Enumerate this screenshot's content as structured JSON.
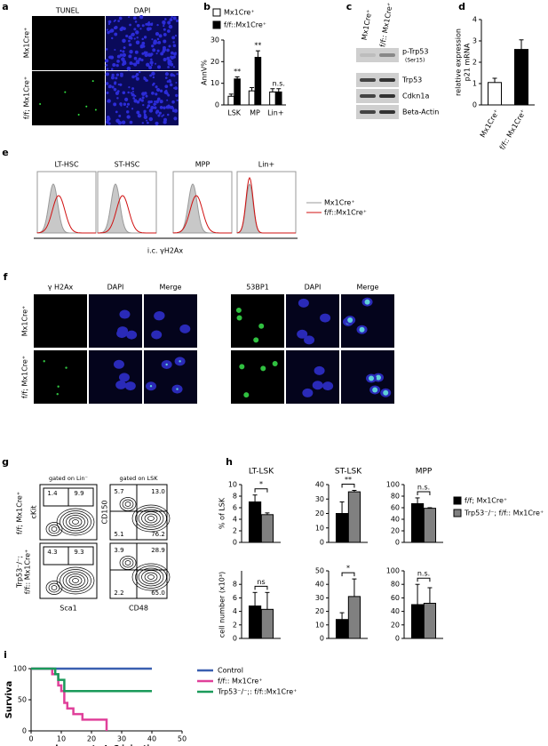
{
  "panel_labels": [
    "a",
    "b",
    "c",
    "d",
    "e",
    "f",
    "g",
    "h",
    "i"
  ],
  "panel_a": {
    "columns": [
      "TUNEL",
      "DAPI"
    ],
    "rows": [
      "Mx1Cre⁺",
      "f/f; Mx1Cre⁺"
    ]
  },
  "panel_c": {
    "columns": [
      "Mx1Cre⁺",
      "f/f:: Mx1Cre⁺"
    ],
    "bands": [
      "p-Trp53",
      "(Ser15)",
      "Trp53",
      "Cdkn1a",
      "Beta-Actin"
    ]
  },
  "panel_e": {
    "populations": [
      "LT-HSC",
      "ST-HSC",
      "MPP",
      "Lin+"
    ],
    "legend": [
      "Mx1Cre⁺",
      "f/f::Mx1Cre⁺"
    ],
    "xlabel": "i.c. γH2Ax"
  },
  "panel_f": {
    "left_columns": [
      "γ H2Ax",
      "DAPI",
      "Merge"
    ],
    "right_columns": [
      "53BP1",
      "DAPI",
      "Merge"
    ],
    "rows": [
      "Mx1Cre⁺",
      "f/f; Mx1Cre⁺"
    ]
  },
  "panel_g": {
    "gates": [
      "gated on Lin⁻",
      "gated on LSK"
    ],
    "rows": [
      [
        "f/f; Mx1Cre⁺"
      ],
      [
        "Trp53⁻/⁻;",
        "f/f:: Mx1Cre⁺"
      ]
    ],
    "left_axes": {
      "y": "cKit",
      "x": "Sca1"
    },
    "right_axes": {
      "y": "CD150",
      "x": "CD48"
    },
    "plots": [
      [
        [
          "1.4",
          "9.9"
        ],
        [
          "5.7",
          "13.0",
          "5.1",
          "76.2"
        ]
      ],
      [
        [
          "4.3",
          "9.3"
        ],
        [
          "3.9",
          "28.9",
          "2.2",
          "65.0"
        ]
      ]
    ]
  },
  "chart_data": [
    {
      "type": "bar",
      "ylabel": "AnnV%",
      "categories": [
        "LSK",
        "MP",
        "Lin+"
      ],
      "ylim": [
        0,
        30
      ],
      "yticks": [
        0,
        10,
        20,
        30
      ],
      "series": [
        {
          "name": "Mx1Cre⁺",
          "color": "#ffffff",
          "values": [
            4,
            6.5,
            6
          ],
          "errors": [
            1,
            1.5,
            1.5
          ]
        },
        {
          "name": "f/f::Mx1Cre⁺",
          "color": "#000000",
          "values": [
            12,
            22,
            6
          ],
          "errors": [
            1,
            3,
            1.5
          ]
        }
      ],
      "annotations": [
        "**",
        "**",
        "n.s."
      ],
      "legend": "top-left"
    },
    {
      "type": "bar",
      "ylabel": [
        "relative expression",
        "p21 mRNA"
      ],
      "categories": [
        "Mx1Cre⁺",
        "f/f:: Mx1Cre⁺"
      ],
      "values": [
        1.05,
        2.6
      ],
      "errors": [
        0.2,
        0.45
      ],
      "colors": [
        "#ffffff",
        "#000000"
      ],
      "ylim": [
        0,
        4
      ],
      "yticks": [
        0,
        1,
        2,
        3,
        4
      ]
    },
    {
      "type": "bar",
      "title": "LT-LSK",
      "ylabel": "% of LSK",
      "ylim": [
        0,
        10
      ],
      "yticks": [
        0,
        2,
        4,
        6,
        8,
        10
      ],
      "annotation": "*",
      "series": [
        {
          "color": "#000000",
          "values": [
            7
          ],
          "errors": [
            1.2
          ]
        },
        {
          "color": "#808080",
          "values": [
            4.8
          ],
          "errors": [
            0.3
          ]
        }
      ]
    },
    {
      "type": "bar",
      "title": "ST-LSK",
      "ylim": [
        0,
        40
      ],
      "yticks": [
        0,
        10,
        20,
        30,
        40
      ],
      "annotation": "**",
      "series": [
        {
          "color": "#000000",
          "values": [
            20
          ],
          "errors": [
            8
          ]
        },
        {
          "color": "#808080",
          "values": [
            35
          ],
          "errors": [
            1
          ]
        }
      ]
    },
    {
      "type": "bar",
      "title": "MPP",
      "ylim": [
        0,
        100
      ],
      "yticks": [
        0,
        20,
        40,
        60,
        80,
        100
      ],
      "annotation": "n.s.",
      "legend": "right",
      "series": [
        {
          "name": "f/f; Mx1Cre⁺",
          "color": "#000000",
          "values": [
            67
          ],
          "errors": [
            10
          ]
        },
        {
          "name": "Trp53⁻/⁻; f/f:: Mx1Cre⁺",
          "color": "#808080",
          "values": [
            59
          ],
          "errors": [
            1
          ]
        }
      ]
    },
    {
      "type": "bar",
      "ylabel": "cell number (x10³)",
      "ylim": [
        0,
        10
      ],
      "yticks": [
        0,
        2,
        4,
        6,
        8
      ],
      "annotation": "ns",
      "series": [
        {
          "color": "#000000",
          "values": [
            4.8
          ],
          "errors": [
            2
          ]
        },
        {
          "color": "#808080",
          "values": [
            4.3
          ],
          "errors": [
            2.5
          ]
        }
      ]
    },
    {
      "type": "bar",
      "ylim": [
        0,
        50
      ],
      "yticks": [
        0,
        10,
        20,
        30,
        40,
        50
      ],
      "annotation": "*",
      "series": [
        {
          "color": "#000000",
          "values": [
            14
          ],
          "errors": [
            5
          ]
        },
        {
          "color": "#808080",
          "values": [
            31
          ],
          "errors": [
            13
          ]
        }
      ]
    },
    {
      "type": "bar",
      "ylim": [
        0,
        100
      ],
      "yticks": [
        0,
        20,
        40,
        60,
        80,
        100
      ],
      "annotation": "n.s.",
      "series": [
        {
          "color": "#000000",
          "values": [
            50
          ],
          "errors": [
            30
          ]
        },
        {
          "color": "#808080",
          "values": [
            52
          ],
          "errors": [
            23
          ]
        }
      ]
    },
    {
      "type": "line",
      "step": true,
      "ylabel": "Surviva",
      "xlabel": "days post pIpC injection",
      "xlim": [
        0,
        50
      ],
      "xticks": [
        0,
        10,
        20,
        30,
        40,
        50
      ],
      "ylim": [
        0,
        100
      ],
      "yticks": [
        0,
        50,
        100
      ],
      "legend": "right",
      "series": [
        {
          "name": "Control",
          "color": "#3a5fb0",
          "x": [
            0,
            40
          ],
          "values": [
            100,
            100
          ]
        },
        {
          "name": "f/f:: Mx1Cre⁺",
          "color": "#e0409a",
          "x": [
            0,
            7,
            9,
            10,
            11,
            12,
            14,
            17,
            25
          ],
          "values": [
            100,
            91,
            73,
            64,
            45,
            36,
            27,
            18,
            0
          ]
        },
        {
          "name": "Trp53⁻/⁻;: f/f::Mx1Cre⁺",
          "color": "#1a9a5a",
          "x": [
            0,
            8,
            9,
            11,
            40
          ],
          "values": [
            100,
            91,
            82,
            64,
            64
          ]
        }
      ]
    }
  ]
}
